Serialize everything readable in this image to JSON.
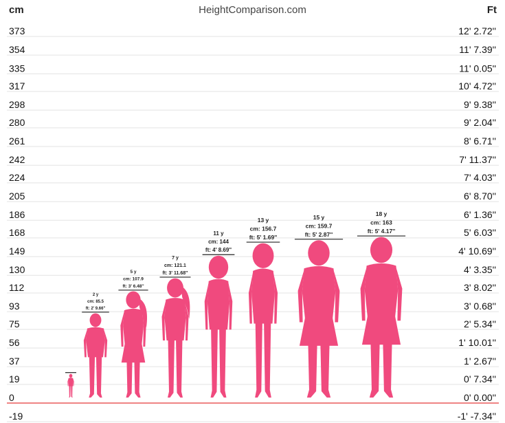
{
  "header": {
    "left_unit": "cm",
    "site": "HeightComparison.com",
    "right_unit": "Ft"
  },
  "colors": {
    "figure": "#f04a7e",
    "grid": "#e3e3e3",
    "baseline": "#e85a5a",
    "text": "#111111"
  },
  "chart_data": {
    "type": "bar",
    "ylim": [
      -19,
      373
    ],
    "grid": true,
    "left_ticks": [
      {
        "cm": 373,
        "label": "373"
      },
      {
        "cm": 354,
        "label": "354"
      },
      {
        "cm": 335,
        "label": "335"
      },
      {
        "cm": 317,
        "label": "317"
      },
      {
        "cm": 298,
        "label": "298"
      },
      {
        "cm": 280,
        "label": "280"
      },
      {
        "cm": 261,
        "label": "261"
      },
      {
        "cm": 242,
        "label": "242"
      },
      {
        "cm": 224,
        "label": "224"
      },
      {
        "cm": 205,
        "label": "205"
      },
      {
        "cm": 186,
        "label": "186"
      },
      {
        "cm": 168,
        "label": "168"
      },
      {
        "cm": 149,
        "label": "149"
      },
      {
        "cm": 130,
        "label": "130"
      },
      {
        "cm": 112,
        "label": "112"
      },
      {
        "cm": 93,
        "label": "93"
      },
      {
        "cm": 75,
        "label": "75"
      },
      {
        "cm": 56,
        "label": "56"
      },
      {
        "cm": 37,
        "label": "37"
      },
      {
        "cm": 19,
        "label": "19"
      },
      {
        "cm": 0,
        "label": "0"
      },
      {
        "cm": -19,
        "label": "-19"
      }
    ],
    "right_ticks": [
      "12' 2.72''",
      "11' 7.39''",
      "11' 0.05''",
      "10' 4.72''",
      "9' 9.38''",
      "9' 2.04''",
      "8' 6.71''",
      "7' 11.37''",
      "7' 4.03''",
      "6' 8.70''",
      "6' 1.36''",
      "5' 6.03''",
      "4' 10.69''",
      "4' 3.35''",
      "3' 8.02''",
      "3' 0.68''",
      "2' 5.34''",
      "1' 10.01''",
      "1' 2.67''",
      "0' 7.34''",
      "0' 0.00''",
      "-1' -7.34''"
    ],
    "series": [
      {
        "age": "",
        "cm": 24,
        "cm_label": "",
        "ft_label": ""
      },
      {
        "age": "2 y",
        "cm": 85.5,
        "cm_label": "cm: 85.5",
        "ft_label": "ft: 2' 9.66''"
      },
      {
        "age": "5 y",
        "cm": 107.9,
        "cm_label": "cm: 107.9",
        "ft_label": "ft: 3' 6.48''"
      },
      {
        "age": "7 y",
        "cm": 121.1,
        "cm_label": "cm: 121.1",
        "ft_label": "ft: 3' 11.68''"
      },
      {
        "age": "11 y",
        "cm": 144,
        "cm_label": "cm: 144",
        "ft_label": "ft: 4' 8.69''"
      },
      {
        "age": "13 y",
        "cm": 156.7,
        "cm_label": "cm: 156.7",
        "ft_label": "ft: 5' 1.69''"
      },
      {
        "age": "15 y",
        "cm": 159.7,
        "cm_label": "cm: 159.7",
        "ft_label": "ft: 5' 2.87''"
      },
      {
        "age": "18 y",
        "cm": 163,
        "cm_label": "cm: 163",
        "ft_label": "ft: 5' 4.17''"
      }
    ]
  }
}
